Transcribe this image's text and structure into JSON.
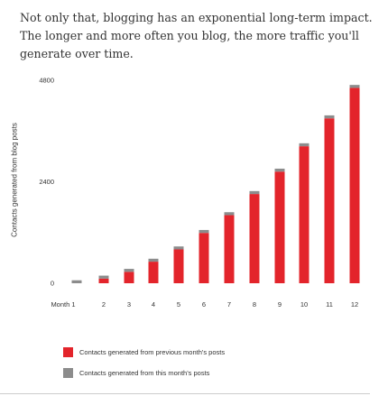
{
  "intro": {
    "line1": "Not only that, blogging has an exponential long-term impact.",
    "line2": "The longer and more often you blog, the more traffic you'll",
    "line3": "generate over time."
  },
  "chart_data": {
    "type": "bar",
    "stacked": true,
    "categories": [
      "Month 1",
      "2",
      "3",
      "4",
      "5",
      "6",
      "7",
      "8",
      "9",
      "10",
      "11",
      "12"
    ],
    "series": [
      {
        "name": "Contacts generated from previous month's posts",
        "color": "#e3242b",
        "values": [
          0,
          110,
          270,
          510,
          800,
          1190,
          1610,
          2110,
          2640,
          3240,
          3900,
          4620
        ]
      },
      {
        "name": "Contacts generated from this month's posts",
        "color": "#8c8c8c",
        "values": [
          70,
          70,
          70,
          70,
          70,
          70,
          70,
          70,
          70,
          70,
          70,
          70
        ]
      }
    ],
    "ylabel": "Contacts generated from blog posts",
    "yticks": [
      0,
      2400,
      4800
    ],
    "ylim": [
      0,
      4800
    ],
    "grid": false,
    "legend": "bottom-left"
  }
}
